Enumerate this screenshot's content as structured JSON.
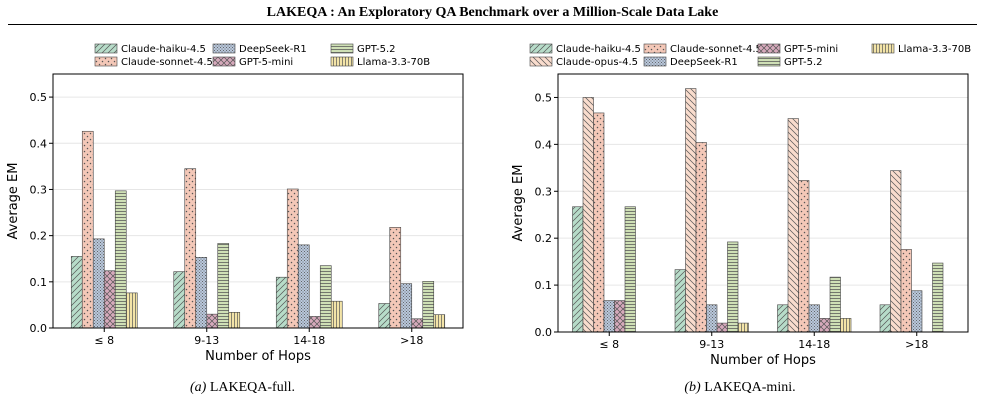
{
  "header": {
    "title": "LAKEQA : An Exploratory QA Benchmark over a Million-Scale Data Lake"
  },
  "styles": {
    "Claude-haiku-4.5": {
      "color": "#b7dcc9",
      "hatch": "diag-fwd"
    },
    "Claude-sonnet-4.5": {
      "color": "#f4c8b8",
      "hatch": "dots"
    },
    "Claude-opus-4.5": {
      "color": "#f9dccd",
      "hatch": "diag-back"
    },
    "DeepSeek-R1": {
      "color": "#b9c8dc",
      "hatch": "dense-dots"
    },
    "GPT-5-mini": {
      "color": "#d6a9bb",
      "hatch": "cross"
    },
    "GPT-5.2": {
      "color": "#cfe0b6",
      "hatch": "horizontal"
    },
    "Llama-3.3-70B": {
      "color": "#f3e4a8",
      "hatch": "vertical"
    }
  },
  "chart_data": [
    {
      "type": "bar",
      "caption_letter": "(a)",
      "caption_name": "LAKEQA-full.",
      "xlabel": "Number of Hops",
      "ylabel": "Average EM",
      "ylim": [
        0,
        0.55
      ],
      "yticks": [
        0.0,
        0.1,
        0.2,
        0.3,
        0.4,
        0.5
      ],
      "grid": true,
      "legend_placement": "top",
      "categories": [
        "≤ 8",
        "9-13",
        "14-18",
        ">18"
      ],
      "series": [
        {
          "name": "Claude-haiku-4.5",
          "values": [
            0.155,
            0.122,
            0.11,
            0.053
          ]
        },
        {
          "name": "Claude-sonnet-4.5",
          "values": [
            0.426,
            0.345,
            0.301,
            0.218
          ]
        },
        {
          "name": "DeepSeek-R1",
          "values": [
            0.193,
            0.153,
            0.18,
            0.096
          ]
        },
        {
          "name": "GPT-5-mini",
          "values": [
            0.124,
            0.03,
            0.025,
            0.02
          ]
        },
        {
          "name": "GPT-5.2",
          "values": [
            0.297,
            0.183,
            0.135,
            0.101
          ]
        },
        {
          "name": "Llama-3.3-70B",
          "values": [
            0.076,
            0.034,
            0.058,
            0.029
          ]
        }
      ],
      "legend_rows": [
        [
          "Claude-haiku-4.5",
          "DeepSeek-R1",
          "GPT-5.2"
        ],
        [
          "Claude-sonnet-4.5",
          "GPT-5-mini",
          "Llama-3.3-70B"
        ]
      ]
    },
    {
      "type": "bar",
      "caption_letter": "(b)",
      "caption_name": "LAKEQA-mini.",
      "xlabel": "Number of Hops",
      "ylabel": "Average EM",
      "ylim": [
        0,
        0.55
      ],
      "yticks": [
        0.0,
        0.1,
        0.2,
        0.3,
        0.4,
        0.5
      ],
      "grid": true,
      "legend_placement": "top",
      "categories": [
        "≤ 8",
        "9-13",
        "14-18",
        ">18"
      ],
      "series": [
        {
          "name": "Claude-haiku-4.5",
          "values": [
            0.267,
            0.133,
            0.058,
            0.058
          ]
        },
        {
          "name": "Claude-opus-4.5",
          "values": [
            0.5,
            0.519,
            0.455,
            0.344
          ]
        },
        {
          "name": "Claude-sonnet-4.5",
          "values": [
            0.467,
            0.404,
            0.323,
            0.176
          ]
        },
        {
          "name": "DeepSeek-R1",
          "values": [
            0.067,
            0.058,
            0.058,
            0.088
          ]
        },
        {
          "name": "GPT-5-mini",
          "values": [
            0.067,
            0.019,
            0.029,
            0.0
          ]
        },
        {
          "name": "GPT-5.2",
          "values": [
            0.267,
            0.192,
            0.117,
            0.147
          ]
        },
        {
          "name": "Llama-3.3-70B",
          "values": [
            0.0,
            0.019,
            0.029,
            0.0
          ]
        }
      ],
      "legend_rows": [
        [
          "Claude-haiku-4.5",
          "Claude-sonnet-4.5",
          "GPT-5-mini",
          "Llama-3.3-70B"
        ],
        [
          "Claude-opus-4.5",
          "DeepSeek-R1",
          "GPT-5.2"
        ]
      ]
    }
  ]
}
